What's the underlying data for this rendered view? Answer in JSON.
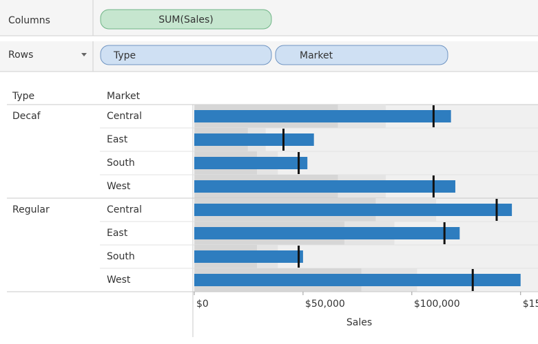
{
  "shelves": {
    "columns_label": "Columns",
    "columns_pill": "SUM(Sales)",
    "rows_label": "Rows",
    "rows_pills": [
      "Type",
      "Market"
    ]
  },
  "chart_data": {
    "type": "bullet",
    "headers": [
      "Type",
      "Market"
    ],
    "xlabel": "Sales",
    "color": "#2e7dbf",
    "target_color": "#111111",
    "range_colors": [
      "#d6d6d6",
      "#e4e4e4",
      "#f0f0f0"
    ],
    "xlim": [
      0,
      158000
    ],
    "xticks": [
      {
        "value": 0,
        "label": "$0"
      },
      {
        "value": 50000,
        "label": "$50,000"
      },
      {
        "value": 100000,
        "label": "$100,000"
      },
      {
        "value": 150000,
        "label": "$150,000"
      }
    ],
    "groups": [
      {
        "name": "Decaf",
        "categories": [
          "Central",
          "East",
          "South",
          "West"
        ],
        "values": [
          118000,
          55000,
          52000,
          120000
        ],
        "targets": [
          110000,
          41000,
          48000,
          110000
        ],
        "ranges": [
          [
            66000,
            88000
          ],
          [
            24600,
            32800
          ],
          [
            28800,
            38400
          ],
          [
            66000,
            88000
          ]
        ]
      },
      {
        "name": "Regular",
        "categories": [
          "Central",
          "East",
          "South",
          "West"
        ],
        "values": [
          146000,
          122000,
          50000,
          150000
        ],
        "targets": [
          139000,
          115000,
          48000,
          128000
        ],
        "ranges": [
          [
            83400,
            111200
          ],
          [
            69000,
            92000
          ],
          [
            28800,
            38400
          ],
          [
            76800,
            102400
          ]
        ]
      }
    ]
  }
}
